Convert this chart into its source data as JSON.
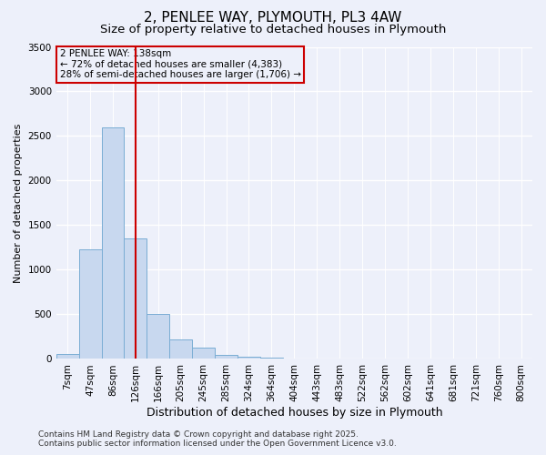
{
  "title": "2, PENLEE WAY, PLYMOUTH, PL3 4AW",
  "subtitle": "Size of property relative to detached houses in Plymouth",
  "xlabel": "Distribution of detached houses by size in Plymouth",
  "ylabel": "Number of detached properties",
  "categories": [
    "7sqm",
    "47sqm",
    "86sqm",
    "126sqm",
    "166sqm",
    "205sqm",
    "245sqm",
    "285sqm",
    "324sqm",
    "364sqm",
    "404sqm",
    "443sqm",
    "483sqm",
    "522sqm",
    "562sqm",
    "602sqm",
    "641sqm",
    "681sqm",
    "721sqm",
    "760sqm",
    "800sqm"
  ],
  "values": [
    60,
    1230,
    2600,
    1350,
    500,
    215,
    125,
    50,
    30,
    10,
    5,
    2,
    0,
    0,
    0,
    0,
    0,
    0,
    0,
    0,
    0
  ],
  "bar_color": "#c8d8ef",
  "bar_edge_color": "#7aadd4",
  "vline_x_index": 3,
  "vline_color": "#cc0000",
  "annotation_text": "2 PENLEE WAY: 138sqm\n← 72% of detached houses are smaller (4,383)\n28% of semi-detached houses are larger (1,706) →",
  "annotation_box_color": "#cc0000",
  "ylim": [
    0,
    3500
  ],
  "yticks": [
    0,
    500,
    1000,
    1500,
    2000,
    2500,
    3000,
    3500
  ],
  "background_color": "#edf0fa",
  "grid_color": "#ffffff",
  "footer_line1": "Contains HM Land Registry data © Crown copyright and database right 2025.",
  "footer_line2": "Contains public sector information licensed under the Open Government Licence v3.0.",
  "title_fontsize": 11,
  "subtitle_fontsize": 9.5,
  "xlabel_fontsize": 9,
  "ylabel_fontsize": 8,
  "tick_fontsize": 7.5,
  "annotation_fontsize": 7.5,
  "footer_fontsize": 6.5
}
